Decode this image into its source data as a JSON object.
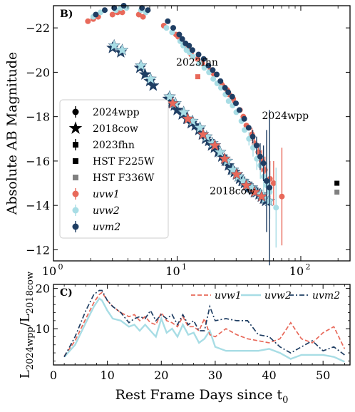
{
  "chart_data": [
    {
      "type": "scatter",
      "panel_label": "B)",
      "ylabel": "Absolute AB Magnitude",
      "xscale": "log",
      "xlim": [
        1,
        250
      ],
      "ylim": [
        -11.5,
        -23
      ],
      "y_inverted": true,
      "xticks": [
        {
          "v": 1,
          "label": "10",
          "sup": "0"
        },
        {
          "v": 10,
          "label": "10",
          "sup": "1"
        },
        {
          "v": 100,
          "label": "10",
          "sup": "2"
        }
      ],
      "yticks": [
        {
          "v": -22,
          "label": "−22"
        },
        {
          "v": -20,
          "label": "−20"
        },
        {
          "v": -18,
          "label": "−18"
        },
        {
          "v": -16,
          "label": "−16"
        },
        {
          "v": -14,
          "label": "−14"
        },
        {
          "v": -12,
          "label": "−12"
        }
      ],
      "annotations": [
        {
          "text": "2023fhn",
          "x": 14.5,
          "y": -20.3
        },
        {
          "text": "2024wpp",
          "x": 75,
          "y": -17.9
        },
        {
          "text": "2018cow",
          "x": 28,
          "y": -14.5
        }
      ],
      "legend": {
        "position": "left",
        "entries": [
          {
            "label": "2024wpp",
            "marker": "circle",
            "color": "#000000",
            "errorbar": true
          },
          {
            "label": "2018cow",
            "marker": "star",
            "color": "#000000",
            "errorbar": false
          },
          {
            "label": "2023fhn",
            "marker": "square",
            "color": "#000000",
            "errorbar": true
          },
          {
            "label": "HST F225W",
            "marker": "square",
            "color": "#000000",
            "errorbar": false
          },
          {
            "label": "HST F336W",
            "marker": "square",
            "color": "#808080",
            "errorbar": false
          },
          {
            "label": "uvw1",
            "marker": "circle",
            "color": "#e8695a",
            "errorbar": true,
            "italic": true
          },
          {
            "label": "uvw2",
            "marker": "circle",
            "color": "#a8dde5",
            "errorbar": true,
            "italic": true
          },
          {
            "label": "uvm2",
            "marker": "circle",
            "color": "#1f3e63",
            "errorbar": true,
            "italic": true
          }
        ]
      },
      "series": [
        {
          "name": "uvw1",
          "object": "2024wpp",
          "marker": "circle",
          "color": "#e8695a",
          "x": [
            1.9,
            2.1,
            2.3,
            3.0,
            3.3,
            3.6,
            4.9,
            5.3,
            7.8,
            9.8,
            10.2,
            10.8,
            11.6,
            12.3,
            13.0,
            14.6,
            16.0,
            18.6,
            19.3,
            19.9,
            22.6,
            23.3,
            25.4,
            26.3,
            28.4,
            29.2,
            32.2,
            34.3,
            36.3,
            40.3,
            42.3,
            45.3,
            48.3,
            51.3,
            56.3,
            60.3,
            70.3
          ],
          "y": [
            -22.3,
            -22.4,
            -22.5,
            -22.6,
            -22.7,
            -22.7,
            -22.6,
            -22.5,
            -22.1,
            -21.7,
            -21.6,
            -21.4,
            -21.2,
            -21.0,
            -20.8,
            -20.6,
            -20.4,
            -20.1,
            -20.0,
            -19.9,
            -19.5,
            -19.4,
            -19.2,
            -19.0,
            -18.8,
            -18.6,
            -18.3,
            -18.0,
            -17.6,
            -17.2,
            -16.8,
            -16.4,
            -16.0,
            -15.6,
            -15.2,
            -15.0,
            -14.4
          ],
          "err": [
            0,
            0,
            0,
            0,
            0,
            0,
            0,
            0,
            0,
            0,
            0,
            0,
            0,
            0,
            0,
            0,
            0,
            0,
            0,
            0,
            0,
            0,
            0,
            0,
            0,
            0,
            0,
            0,
            0,
            0.3,
            0.3,
            0.4,
            0.5,
            0.6,
            0.8,
            1.0,
            2.2
          ]
        },
        {
          "name": "uvw2",
          "object": "2024wpp",
          "marker": "circle",
          "color": "#a8dde5",
          "x": [
            2.1,
            2.4,
            3.2,
            3.5,
            3.9,
            5.1,
            5.6,
            8.2,
            9.1,
            10.6,
            11.2,
            11.9,
            12.6,
            13.4,
            15.1,
            16.6,
            18.1,
            19.6,
            21.1,
            22.6,
            24.6,
            26.1,
            28.1,
            30.1,
            33.1,
            35.1,
            38.1,
            41.1,
            44.1,
            47.1,
            50.1,
            53.1,
            56.1,
            63.1
          ],
          "y": [
            -22.5,
            -22.7,
            -22.8,
            -22.9,
            -22.9,
            -22.8,
            -22.7,
            -22.0,
            -21.8,
            -21.4,
            -21.2,
            -21.0,
            -20.9,
            -20.7,
            -20.4,
            -20.2,
            -20.0,
            -19.7,
            -19.5,
            -19.3,
            -19.0,
            -18.7,
            -18.5,
            -18.2,
            -17.8,
            -17.4,
            -17.0,
            -16.6,
            -16.1,
            -15.8,
            -15.3,
            -14.9,
            -14.6,
            -13.9
          ],
          "err": [
            0,
            0,
            0,
            0,
            0,
            0,
            0,
            0,
            0,
            0,
            0,
            0,
            0,
            0,
            0,
            0,
            0,
            0,
            0,
            0,
            0,
            0,
            0,
            0,
            0,
            0,
            0.3,
            0.4,
            0.5,
            0.6,
            0.8,
            1.0,
            1.2,
            1.8
          ]
        },
        {
          "name": "uvm2",
          "object": "2024wpp",
          "marker": "circle",
          "color": "#1f3e63",
          "x": [
            2.2,
            2.6,
            3.1,
            3.7,
            5.2,
            5.8,
            8.4,
            9.3,
            10.4,
            11.0,
            11.7,
            12.5,
            13.3,
            14.9,
            16.4,
            17.9,
            19.4,
            20.9,
            22.4,
            24.4,
            25.9,
            27.9,
            29.9,
            31.9,
            34.9,
            37.9,
            40.9,
            43.9,
            46.9,
            49.9,
            52.9,
            55.9
          ],
          "y": [
            -22.6,
            -22.8,
            -22.9,
            -23.0,
            -22.9,
            -22.8,
            -22.3,
            -22.0,
            -21.7,
            -21.5,
            -21.3,
            -21.2,
            -21.0,
            -20.8,
            -20.6,
            -20.3,
            -20.1,
            -19.9,
            -19.6,
            -19.3,
            -19.1,
            -18.9,
            -18.6,
            -18.3,
            -17.9,
            -17.5,
            -17.1,
            -16.7,
            -16.2,
            -15.9,
            -15.1,
            -14.8
          ],
          "err": [
            0,
            0,
            0,
            0,
            0,
            0,
            0,
            0,
            0,
            0,
            0,
            0,
            0,
            0,
            0,
            0,
            0,
            0,
            0,
            0,
            0,
            0,
            0,
            0,
            0,
            0,
            0.3,
            0.4,
            0.6,
            0.8,
            2.3,
            3.5
          ]
        },
        {
          "name": "2018cow",
          "object": "2018cow",
          "marker": "star",
          "color": "#1f3e63",
          "x": [
            3.0,
            3.5,
            5.0,
            5.5,
            6.0,
            6.4,
            8.5,
            9.0,
            9.5,
            10.0,
            11.0,
            12.0,
            13.0,
            14.0,
            15.0,
            16.0,
            17.0,
            18.0,
            19.0,
            20.0,
            21.5,
            23.0,
            24.5,
            26.0,
            27.5,
            29.0,
            30.5,
            32.0,
            33.5,
            35.0,
            36.5,
            38.0,
            39.5,
            41.0,
            42.5,
            44.0,
            46.0,
            48.0,
            50.0,
            52.0
          ],
          "y": [
            -21.1,
            -20.9,
            -20.2,
            -19.9,
            -19.6,
            -19.4,
            -18.8,
            -18.6,
            -18.5,
            -18.3,
            -18.1,
            -17.9,
            -17.7,
            -17.6,
            -17.4,
            -17.2,
            -17.0,
            -16.9,
            -16.7,
            -16.6,
            -16.4,
            -16.2,
            -16.0,
            -15.8,
            -15.6,
            -15.5,
            -15.4,
            -15.2,
            -15.1,
            -15.0,
            -14.9,
            -14.8,
            -14.8,
            -14.7,
            -14.6,
            -14.6,
            -14.5,
            -14.4,
            -14.3,
            -14.2
          ]
        },
        {
          "name": "2018cow-uvw2",
          "object": "2018cow",
          "marker": "star",
          "color": "#a8dde5",
          "x": [
            3.1,
            3.6,
            5.1,
            6.1,
            8.7,
            9.7,
            11.3,
            13.3,
            15.3,
            17.3,
            19.3,
            22.3,
            25.3,
            28.3,
            31.3,
            34.3,
            37.3,
            40.3,
            43.3,
            47.3,
            51.3,
            55.3
          ],
          "y": [
            -21.2,
            -21.0,
            -20.3,
            -19.7,
            -18.9,
            -18.6,
            -18.2,
            -17.8,
            -17.5,
            -17.1,
            -16.8,
            -16.4,
            -16.0,
            -15.6,
            -15.3,
            -15.1,
            -14.9,
            -14.8,
            -14.6,
            -14.5,
            -14.3,
            -14.2
          ]
        },
        {
          "name": "2018cow-uvw1",
          "object": "2018cow",
          "marker": "star",
          "color": "#e8695a",
          "x": [
            9.2,
            12.2,
            16.2,
            20.2,
            24.2,
            30.2,
            36.2,
            42.2,
            48.2
          ],
          "y": [
            -18.6,
            -17.9,
            -17.2,
            -16.7,
            -16.1,
            -15.4,
            -14.9,
            -14.6,
            -14.4
          ]
        },
        {
          "name": "2023fhn",
          "object": "2023fhn",
          "marker": "square",
          "color": "#e8695a",
          "x": [
            14.7
          ],
          "y": [
            -19.8
          ]
        },
        {
          "name": "HST F225W",
          "object": "2023fhn",
          "marker": "square",
          "color": "#000000",
          "x": [
            196
          ],
          "y": [
            -15.0
          ]
        },
        {
          "name": "HST F336W",
          "object": "2023fhn",
          "marker": "square",
          "color": "#808080",
          "x": [
            196
          ],
          "y": [
            -14.6
          ]
        }
      ]
    },
    {
      "type": "line",
      "panel_label": "C)",
      "xlabel": "Rest Frame Days since t",
      "xlabel_sub": "0",
      "ylabel_main": "L",
      "ylabel_sub1": "2024wpp",
      "ylabel_mid": "/L",
      "ylabel_sub2": "2018cow",
      "xlim": [
        0,
        55
      ],
      "ylim": [
        1,
        21
      ],
      "xticks": [
        0,
        10,
        20,
        30,
        40,
        50
      ],
      "yticks": [
        10,
        20
      ],
      "legend": {
        "position": "top-right"
      },
      "series": [
        {
          "name": "uvw1",
          "color": "#e8695a",
          "dash": "dashed",
          "x": [
            2.0,
            4.0,
            6.0,
            7.5,
            8.5,
            9.0,
            10.0,
            11.0,
            12.5,
            14.0,
            15.0,
            16.0,
            17.0,
            18.0,
            19.0,
            20.0,
            21.0,
            22.0,
            23.0,
            24.0,
            25.0,
            26.0,
            27.0,
            28.0,
            29.0,
            30.0,
            32.0,
            34.0,
            36.0,
            38.0,
            40.0,
            42.0,
            44.0,
            46.0,
            48.0,
            50.0,
            52.0,
            54.0
          ],
          "y": [
            3.2,
            7.0,
            12.5,
            16.5,
            18.5,
            19.0,
            17.0,
            15.5,
            14.0,
            13.0,
            13.5,
            12.0,
            13.0,
            11.5,
            11.0,
            14.0,
            12.0,
            11.5,
            10.5,
            13.0,
            10.5,
            10.5,
            9.5,
            12.5,
            8.5,
            8.0,
            10.0,
            8.5,
            7.5,
            7.0,
            6.5,
            7.5,
            11.5,
            7.5,
            6.5,
            9.0,
            10.5,
            5.0
          ]
        },
        {
          "name": "uvw2",
          "color": "#a8dde5",
          "dash": "solid",
          "x": [
            2.0,
            4.0,
            6.0,
            7.5,
            8.5,
            9.0,
            10.0,
            11.0,
            12.5,
            14.0,
            15.0,
            16.0,
            17.0,
            18.0,
            19.0,
            20.0,
            21.0,
            22.0,
            23.0,
            24.0,
            25.0,
            26.0,
            27.0,
            28.0,
            29.0,
            30.0,
            32.0,
            34.0,
            36.0,
            38.0,
            40.0,
            42.0,
            44.0,
            46.0,
            48.0,
            50.0,
            52.0,
            54.0
          ],
          "y": [
            3.0,
            6.0,
            11.5,
            15.5,
            17.5,
            17.0,
            14.5,
            12.5,
            12.0,
            10.5,
            11.0,
            9.5,
            11.0,
            9.5,
            8.0,
            12.5,
            9.0,
            10.0,
            8.0,
            11.0,
            8.5,
            9.0,
            6.5,
            7.5,
            9.5,
            5.5,
            4.5,
            4.5,
            4.5,
            4.5,
            5.0,
            4.0,
            2.5,
            3.5,
            3.5,
            3.5,
            3.0,
            1.8
          ]
        },
        {
          "name": "uvm2",
          "color": "#1f3e63",
          "dash": "dashdot",
          "x": [
            2.0,
            4.0,
            6.0,
            7.5,
            8.5,
            9.0,
            10.0,
            11.0,
            12.5,
            14.0,
            15.0,
            16.0,
            17.0,
            18.0,
            19.0,
            20.0,
            21.0,
            22.0,
            23.0,
            24.0,
            25.0,
            26.0,
            27.0,
            28.0,
            29.0,
            30.0,
            32.0,
            34.0,
            36.0,
            38.0,
            40.0,
            42.0,
            44.0,
            46.0,
            48.0,
            50.0,
            52.0,
            54.0
          ],
          "y": [
            3.0,
            8.0,
            14.5,
            18.5,
            19.5,
            19.5,
            17.0,
            15.5,
            14.0,
            11.5,
            12.5,
            13.0,
            12.5,
            14.5,
            12.0,
            13.5,
            12.5,
            13.5,
            11.0,
            13.5,
            11.0,
            12.0,
            9.5,
            9.5,
            15.5,
            12.0,
            12.5,
            12.0,
            12.0,
            8.5,
            8.0,
            5.5,
            4.0,
            5.5,
            7.0,
            4.5,
            5.5,
            3.5
          ]
        }
      ]
    }
  ]
}
